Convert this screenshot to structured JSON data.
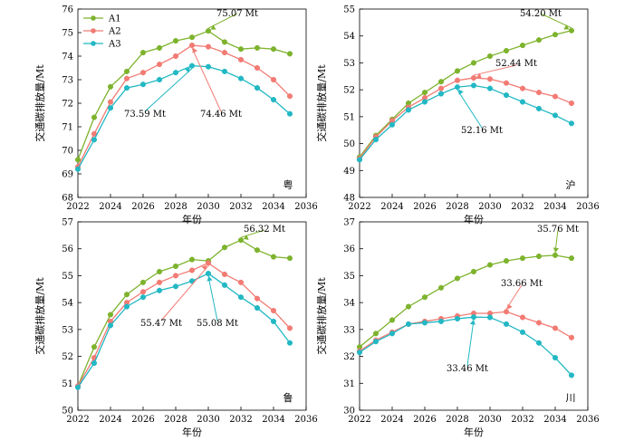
{
  "figure": {
    "xlabel": "年份",
    "legend": [
      {
        "name": "A1",
        "color": "#7db32d"
      },
      {
        "name": "A2",
        "color": "#f27b74"
      },
      {
        "name": "A3",
        "color": "#22b8c4"
      }
    ]
  },
  "chart_data": [
    {
      "type": "line",
      "region": "粤",
      "ylabel": "交通碳排放量/Mt",
      "xlim": [
        2022,
        2036
      ],
      "xticks": [
        2022,
        2024,
        2026,
        2028,
        2030,
        2032,
        2034,
        2036
      ],
      "ylim": [
        68,
        76
      ],
      "yticks": [
        68,
        69,
        70,
        71,
        72,
        73,
        74,
        75,
        76
      ],
      "x": [
        2022,
        2023,
        2024,
        2025,
        2026,
        2027,
        2028,
        2029,
        2030,
        2031,
        2032,
        2033,
        2034,
        2035
      ],
      "series": [
        {
          "name": "A1",
          "color": "#7db32d",
          "values": [
            69.6,
            71.4,
            72.7,
            73.35,
            74.15,
            74.35,
            74.65,
            74.8,
            75.07,
            74.6,
            74.3,
            74.35,
            74.3,
            74.1
          ]
        },
        {
          "name": "A2",
          "color": "#f27b74",
          "values": [
            69.3,
            70.7,
            72.05,
            73.05,
            73.3,
            73.65,
            74.0,
            74.46,
            74.4,
            74.15,
            73.85,
            73.5,
            73.0,
            72.3
          ]
        },
        {
          "name": "A3",
          "color": "#22b8c4",
          "values": [
            69.2,
            70.45,
            71.8,
            72.65,
            72.8,
            73.0,
            73.3,
            73.59,
            73.55,
            73.35,
            73.05,
            72.65,
            72.15,
            71.55
          ]
        }
      ],
      "annotations": [
        {
          "text": "75.07 Mt",
          "x": 2030,
          "series": "A1"
        },
        {
          "text": "74.46 Mt",
          "x": 2029,
          "series": "A2"
        },
        {
          "text": "73.59 Mt",
          "x": 2029,
          "series": "A3"
        }
      ],
      "legend_position": "top-left"
    },
    {
      "type": "line",
      "region": "沪",
      "ylabel": "交通碳排放量/Mt",
      "xlim": [
        2022,
        2036
      ],
      "xticks": [
        2022,
        2024,
        2026,
        2028,
        2030,
        2032,
        2034,
        2036
      ],
      "ylim": [
        48,
        55
      ],
      "yticks": [
        48,
        49,
        50,
        51,
        52,
        53,
        54,
        55
      ],
      "x": [
        2022,
        2023,
        2024,
        2025,
        2026,
        2027,
        2028,
        2029,
        2030,
        2031,
        2032,
        2033,
        2034,
        2035
      ],
      "series": [
        {
          "name": "A1",
          "color": "#7db32d",
          "values": [
            49.5,
            50.3,
            50.9,
            51.5,
            51.9,
            52.3,
            52.7,
            53.0,
            53.25,
            53.45,
            53.65,
            53.85,
            54.05,
            54.2
          ]
        },
        {
          "name": "A2",
          "color": "#f27b74",
          "values": [
            49.45,
            50.25,
            50.85,
            51.35,
            51.7,
            52.05,
            52.35,
            52.44,
            52.4,
            52.25,
            52.05,
            51.9,
            51.75,
            51.5
          ]
        },
        {
          "name": "A3",
          "color": "#22b8c4",
          "values": [
            49.4,
            50.15,
            50.7,
            51.25,
            51.55,
            51.85,
            52.1,
            52.16,
            52.05,
            51.8,
            51.55,
            51.3,
            51.05,
            50.75
          ]
        }
      ],
      "annotations": [
        {
          "text": "54.20 Mt",
          "x": 2035,
          "series": "A1"
        },
        {
          "text": "52.44 Mt",
          "x": 2029,
          "series": "A2"
        },
        {
          "text": "52.16 Mt",
          "x": 2028,
          "series": "A3"
        }
      ]
    },
    {
      "type": "line",
      "region": "鲁",
      "ylabel": "交通碳排放量/Mt",
      "xlim": [
        2022,
        2036
      ],
      "xticks": [
        2022,
        2024,
        2026,
        2028,
        2030,
        2032,
        2034,
        2036
      ],
      "ylim": [
        50,
        57
      ],
      "yticks": [
        50,
        51,
        52,
        53,
        54,
        55,
        56,
        57
      ],
      "x": [
        2022,
        2023,
        2024,
        2025,
        2026,
        2027,
        2028,
        2029,
        2030,
        2031,
        2032,
        2033,
        2034,
        2035
      ],
      "series": [
        {
          "name": "A1",
          "color": "#7db32d",
          "values": [
            50.9,
            52.35,
            53.55,
            54.3,
            54.75,
            55.15,
            55.35,
            55.6,
            55.55,
            56.05,
            56.32,
            55.95,
            55.7,
            55.65
          ]
        },
        {
          "name": "A2",
          "color": "#f27b74",
          "values": [
            50.9,
            51.95,
            53.3,
            54.0,
            54.4,
            54.75,
            55.0,
            55.2,
            55.47,
            55.05,
            54.75,
            54.15,
            53.7,
            53.05
          ]
        },
        {
          "name": "A3",
          "color": "#22b8c4",
          "values": [
            50.85,
            51.75,
            53.15,
            53.85,
            54.2,
            54.45,
            54.6,
            54.8,
            55.08,
            54.65,
            54.2,
            53.8,
            53.3,
            52.5
          ]
        }
      ],
      "annotations": [
        {
          "text": "56.32 Mt",
          "x": 2032,
          "series": "A1"
        },
        {
          "text": "55.47 Mt",
          "x": 2030,
          "series": "A2"
        },
        {
          "text": "55.08 Mt",
          "x": 2030,
          "series": "A3"
        }
      ]
    },
    {
      "type": "line",
      "region": "川",
      "ylabel": "交通碳排放量/Mt",
      "xlim": [
        2022,
        2036
      ],
      "xticks": [
        2022,
        2024,
        2026,
        2028,
        2030,
        2032,
        2034,
        2036
      ],
      "ylim": [
        30,
        37
      ],
      "yticks": [
        30,
        31,
        32,
        33,
        34,
        35,
        36,
        37
      ],
      "x": [
        2022,
        2023,
        2024,
        2025,
        2026,
        2027,
        2028,
        2029,
        2030,
        2031,
        2032,
        2033,
        2034,
        2035
      ],
      "series": [
        {
          "name": "A1",
          "color": "#7db32d",
          "values": [
            32.35,
            32.85,
            33.35,
            33.85,
            34.2,
            34.55,
            34.9,
            35.15,
            35.4,
            35.55,
            35.65,
            35.72,
            35.76,
            35.65
          ]
        },
        {
          "name": "A2",
          "color": "#f27b74",
          "values": [
            32.2,
            32.6,
            32.9,
            33.2,
            33.3,
            33.4,
            33.5,
            33.6,
            33.6,
            33.66,
            33.45,
            33.25,
            33.05,
            32.7
          ]
        },
        {
          "name": "A3",
          "color": "#22b8c4",
          "values": [
            32.15,
            32.55,
            32.85,
            33.2,
            33.25,
            33.3,
            33.4,
            33.46,
            33.45,
            33.2,
            32.9,
            32.5,
            31.95,
            31.3
          ]
        }
      ],
      "annotations": [
        {
          "text": "35.76 Mt",
          "x": 2034,
          "series": "A1"
        },
        {
          "text": "33.66 Mt",
          "x": 2031,
          "series": "A2"
        },
        {
          "text": "33.46 Mt",
          "x": 2029,
          "series": "A3"
        }
      ]
    }
  ]
}
